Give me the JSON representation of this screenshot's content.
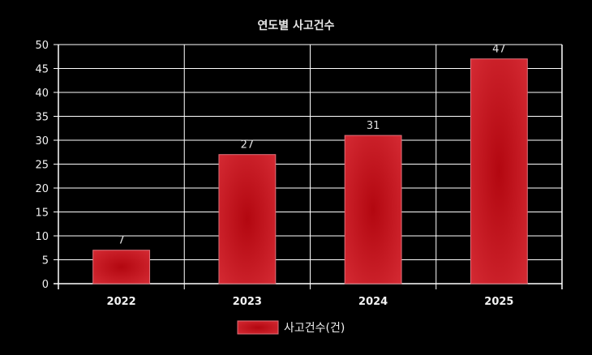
{
  "chart_data": {
    "type": "bar",
    "title": "연도별 사고건수",
    "categories": [
      "2022",
      "2023",
      "2024",
      "2025"
    ],
    "series": [
      {
        "name": "사고건수(건)",
        "values": [
          7,
          27,
          31,
          47
        ]
      }
    ],
    "ylim": [
      0,
      50
    ],
    "yticks": [
      0,
      5,
      10,
      15,
      20,
      25,
      30,
      35,
      40,
      45,
      50
    ],
    "grid": true,
    "legend": "bottom-center",
    "data_labels": true,
    "bar_color": "#c4121a",
    "background": "#000000"
  }
}
